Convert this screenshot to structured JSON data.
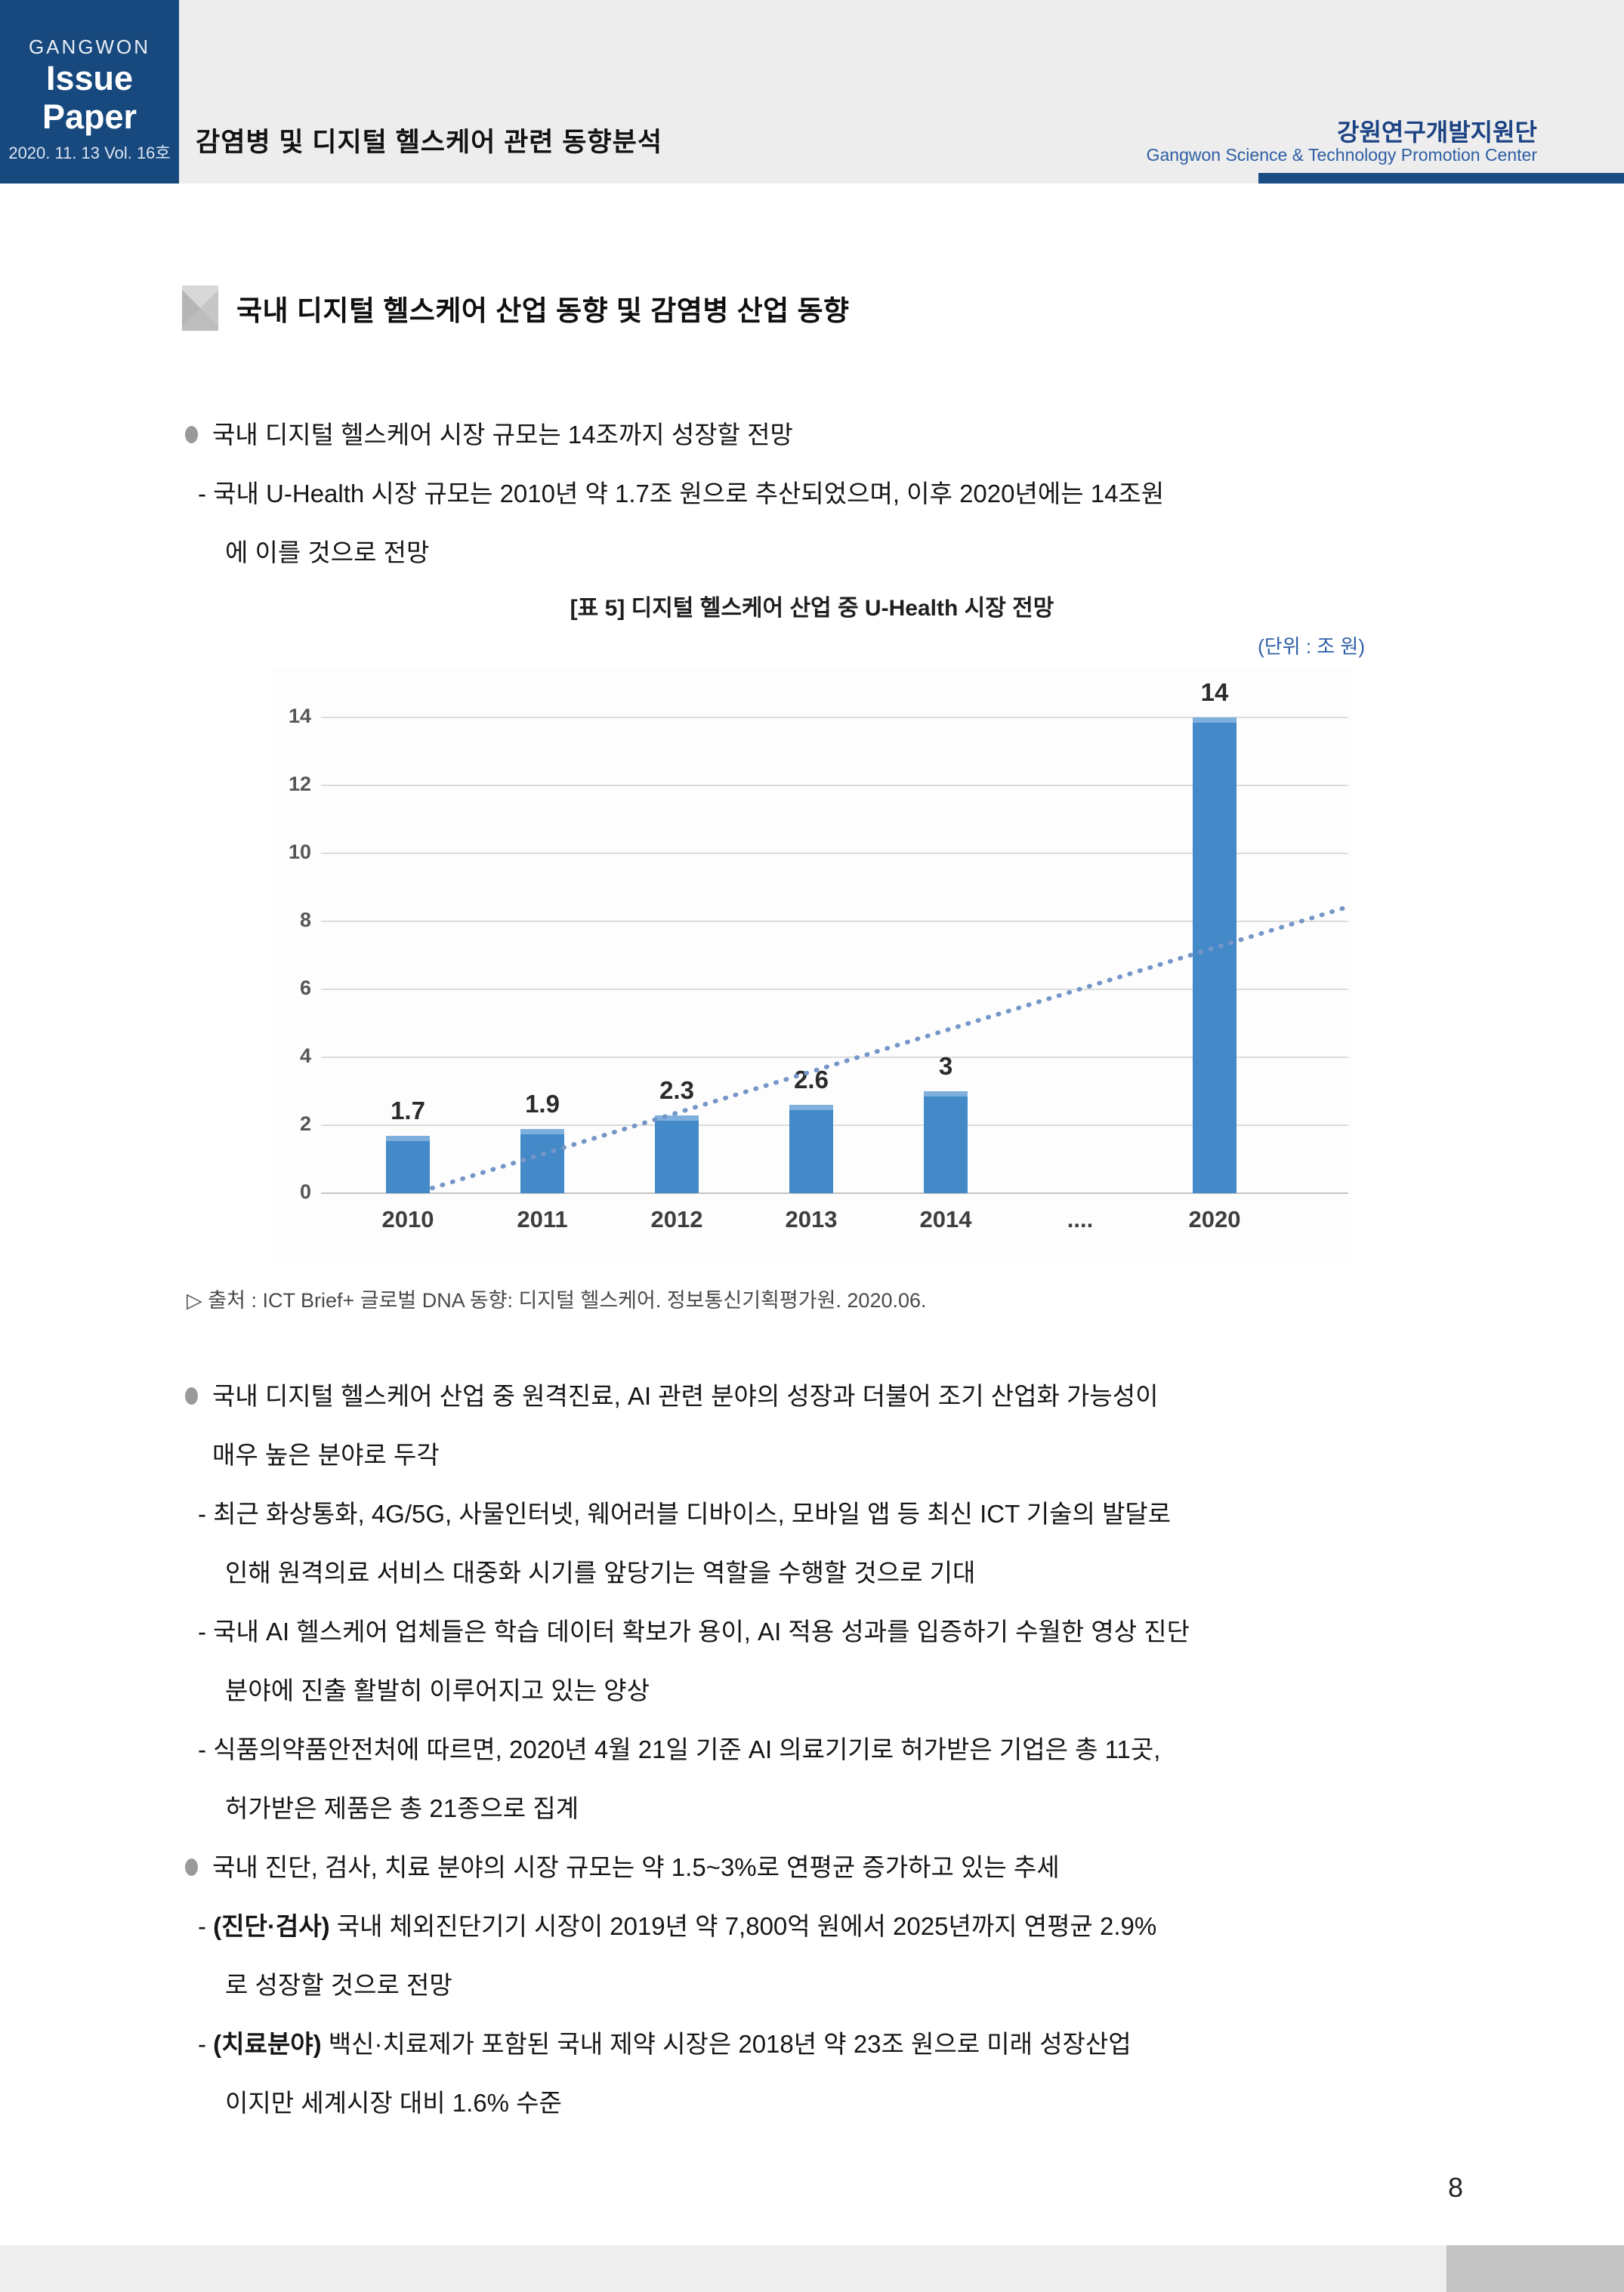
{
  "header": {
    "brand": {
      "top": "GANGWON",
      "title": "Issue Paper",
      "date": "2020. 11. 13  Vol. 16호"
    },
    "doc_title": "감염병 및 디지털 헬스케어 관련 동향분석",
    "org_kr": "강원연구개발지원단",
    "org_en": "Gangwon Science & Technology Promotion Center"
  },
  "section": {
    "title": "국내 디지털 헬스케어 산업 동향 및 감염병 산업 동향"
  },
  "body1": {
    "lines": [
      {
        "k": "b",
        "x": "국내 디지털 헬스케어 시장 규모는 14조까지 성장할 전망"
      },
      {
        "k": "d",
        "x": "- 국내 U-Health 시장 규모는 2010년 약 1.7조 원으로 추산되었으며, 이후 2020년에는 14조원"
      },
      {
        "k": "c2",
        "x": "에 이를 것으로 전망"
      }
    ]
  },
  "chart_data": {
    "type": "bar",
    "title": "[표 5] 디지털 헬스케어 산업 중 U-Health 시장 전망",
    "unit_label": "(단위 : 조 원)",
    "categories": [
      "2010",
      "2011",
      "2012",
      "2013",
      "2014",
      "....",
      "2020"
    ],
    "values": [
      1.7,
      1.9,
      2.3,
      2.6,
      3,
      null,
      14
    ],
    "value_labels": [
      "1.7",
      "1.9",
      "2.3",
      "2.6",
      "3",
      null,
      "14"
    ],
    "ylim": [
      0,
      14
    ],
    "ytick_step": 2,
    "yticks": [
      0,
      2,
      4,
      6,
      8,
      10,
      12,
      14
    ],
    "grid": true,
    "legend": "none",
    "trendline": {
      "style": "dotted",
      "start_value": 0.15,
      "end_value": 8.45,
      "note": "linear dotted projection from 2010 bar to right edge"
    },
    "source": "▷ 출처 : ICT Brief+ 글로벌 DNA 동향: 디지털 헬스케어. 정보통신기획평가원. 2020.06.",
    "bar_color": "#4489c8",
    "bar_cap_color": "#7fb0dd",
    "trend_color": "#7596c8"
  },
  "body2": {
    "lines": [
      {
        "k": "b",
        "x": "국내 디지털 헬스케어 산업 중 원격진료, AI 관련 분야의 성장과 더불어 조기 산업화 가능성이"
      },
      {
        "k": "c1",
        "x": "매우 높은 분야로 두각"
      },
      {
        "k": "d",
        "x": "- 최근 화상통화, 4G/5G, 사물인터넷, 웨어러블 디바이스, 모바일 앱 등 최신 ICT 기술의 발달로"
      },
      {
        "k": "c2",
        "x": "인해 원격의료 서비스 대중화 시기를 앞당기는 역할을 수행할 것으로 기대"
      },
      {
        "k": "d",
        "x": "- 국내 AI 헬스케어 업체들은 학습 데이터 확보가 용이, AI 적용 성과를 입증하기 수월한 영상 진단"
      },
      {
        "k": "c2",
        "x": "분야에 진출 활발히 이루어지고 있는 양상"
      },
      {
        "k": "d",
        "x": "- 식품의약품안전처에 따르면, 2020년 4월 21일 기준 AI 의료기기로 허가받은 기업은 총 11곳,"
      },
      {
        "k": "c2",
        "x": "허가받은 제품은 총 21종으로 집계"
      },
      {
        "k": "b",
        "x": "국내 진단, 검사, 치료 분야의 시장 규모는 약 1.5~3%로 연평균 증가하고 있는 추세"
      },
      {
        "k": "d",
        "pre": "- ",
        "bold": "(진단·검사)",
        "x": " 국내 체외진단기기 시장이 2019년 약 7,800억 원에서 2025년까지 연평균 2.9%"
      },
      {
        "k": "c2",
        "x": "로 성장할 것으로 전망"
      },
      {
        "k": "d",
        "pre": "- ",
        "bold": "(치료분야)",
        "x": " 백신·치료제가 포함된 국내 제약 시장은 2018년 약 23조 원으로 미래 성장산업"
      },
      {
        "k": "c2",
        "x": "이지만 세계시장 대비 1.6% 수준"
      }
    ]
  },
  "page": {
    "number": "8"
  },
  "colors": {
    "brand_blue": "#17497e",
    "header_gray": "#ededed",
    "underline_blue": "#1a4d85",
    "org_kr_blue": "#1c4383",
    "org_en_blue": "#2e5fa4",
    "unit_blue": "#2d5fa6",
    "bar_blue": "#4489c8",
    "footer_gray": "#eeeeee",
    "footer_dark_gray": "#c3c3c3"
  }
}
